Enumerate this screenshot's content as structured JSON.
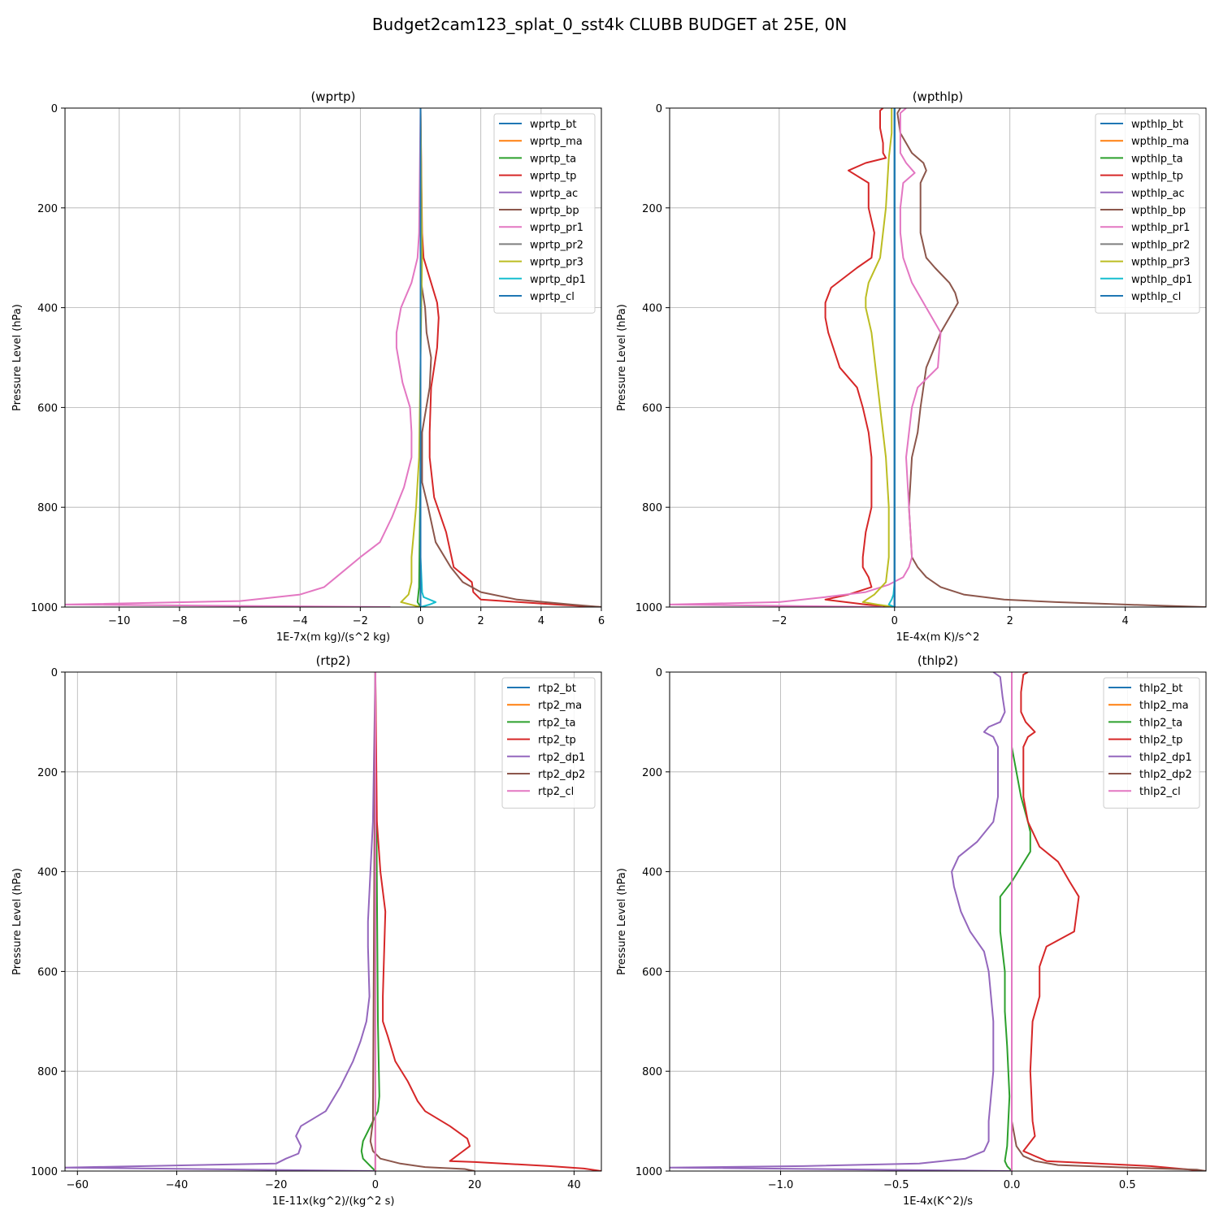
{
  "figure": {
    "title": "Budget2cam123_splat_0_sst4k CLUBB BUDGET at 25E, 0N"
  },
  "colors": [
    "#1f77b4",
    "#ff7f0e",
    "#2ca02c",
    "#d62728",
    "#9467bd",
    "#8c564b",
    "#e377c2",
    "#7f7f7f",
    "#bcbd22",
    "#17becf",
    "#1f77b4"
  ],
  "chart_data": [
    {
      "type": "line",
      "title": "(wprtp)",
      "xlabel": "1E-7x(m kg)/(s^2 kg)",
      "ylabel": "Pressure Level (hPa)",
      "xlim": [
        -11.8,
        6.0
      ],
      "ylim": [
        1000,
        0
      ],
      "y_inverted": true,
      "grid": true,
      "legend_position": "top-right",
      "xticks": [
        -10,
        -8,
        -6,
        -4,
        -2,
        0,
        2,
        4,
        6
      ],
      "xtick_labels": [
        "−10",
        "−8",
        "−6",
        "−4",
        "−2",
        "0",
        "2",
        "4",
        "6"
      ],
      "yticks": [
        0,
        200,
        400,
        600,
        800,
        1000
      ],
      "series": [
        {
          "name": "wprtp_bt",
          "p": [
            0,
            1000
          ],
          "x": [
            0,
            0
          ]
        },
        {
          "name": "wprtp_ma",
          "p": [
            0,
            1000
          ],
          "x": [
            0,
            0
          ]
        },
        {
          "name": "wprtp_ta",
          "p": [
            0,
            700,
            960,
            990,
            1000
          ],
          "x": [
            0,
            0,
            -0.05,
            -0.1,
            0
          ]
        },
        {
          "name": "wprtp_tp",
          "p": [
            0,
            250,
            300,
            350,
            390,
            420,
            480,
            560,
            650,
            700,
            780,
            850,
            920,
            950,
            970,
            985,
            995,
            1000
          ],
          "x": [
            0,
            0.05,
            0.1,
            0.35,
            0.55,
            0.6,
            0.55,
            0.35,
            0.3,
            0.3,
            0.45,
            0.85,
            1.1,
            1.7,
            1.75,
            2.0,
            4.5,
            6.0
          ]
        },
        {
          "name": "wprtp_ac",
          "p": [
            0,
            1000
          ],
          "x": [
            0,
            0
          ]
        },
        {
          "name": "wprtp_bp",
          "p": [
            0,
            350,
            400,
            450,
            500,
            560,
            650,
            750,
            800,
            870,
            920,
            950,
            970,
            985,
            995,
            1000
          ],
          "x": [
            0,
            0.02,
            0.15,
            0.2,
            0.35,
            0.3,
            0.05,
            0.05,
            0.25,
            0.5,
            1.0,
            1.4,
            2.0,
            3.2,
            5.0,
            6.0
          ]
        },
        {
          "name": "wprtp_pr1",
          "p": [
            0,
            250,
            300,
            350,
            400,
            450,
            480,
            550,
            600,
            650,
            700,
            760,
            820,
            870,
            900,
            940,
            960,
            975,
            988,
            995,
            1000
          ],
          "x": [
            0,
            -0.05,
            -0.1,
            -0.3,
            -0.65,
            -0.8,
            -0.8,
            -0.6,
            -0.35,
            -0.3,
            -0.3,
            -0.55,
            -0.95,
            -1.35,
            -2.0,
            -2.8,
            -3.2,
            -4.0,
            -6.0,
            -11.8,
            -1.0
          ]
        },
        {
          "name": "wprtp_pr2",
          "p": [
            0,
            1000
          ],
          "x": [
            0,
            0
          ]
        },
        {
          "name": "wprtp_pr3",
          "p": [
            0,
            300,
            500,
            700,
            800,
            900,
            950,
            975,
            990,
            1000
          ],
          "x": [
            0,
            0.05,
            0.0,
            -0.05,
            -0.15,
            -0.3,
            -0.3,
            -0.4,
            -0.65,
            0
          ]
        },
        {
          "name": "wprtp_dp1",
          "p": [
            0,
            900,
            970,
            980,
            990,
            995,
            1000
          ],
          "x": [
            0,
            0,
            0.05,
            0.1,
            0.5,
            0.3,
            0
          ]
        },
        {
          "name": "wprtp_cl",
          "p": [
            0,
            1000
          ],
          "x": [
            0,
            0
          ]
        }
      ]
    },
    {
      "type": "line",
      "title": "(wpthlp)",
      "xlabel": "1E-4x(m K)/s^2",
      "ylabel": "Pressure Level (hPa)",
      "xlim": [
        -3.9,
        5.4
      ],
      "ylim": [
        1000,
        0
      ],
      "y_inverted": true,
      "grid": true,
      "legend_position": "top-right",
      "xticks": [
        -2,
        0,
        2,
        4
      ],
      "xtick_labels": [
        "−2",
        "0",
        "2",
        "4"
      ],
      "yticks": [
        0,
        200,
        400,
        600,
        800,
        1000
      ],
      "series": [
        {
          "name": "wpthlp_bt",
          "p": [
            0,
            1000
          ],
          "x": [
            0,
            0
          ]
        },
        {
          "name": "wpthlp_ma",
          "p": [
            0,
            1000
          ],
          "x": [
            0,
            0
          ]
        },
        {
          "name": "wpthlp_ta",
          "p": [
            0,
            1000
          ],
          "x": [
            0,
            0
          ]
        },
        {
          "name": "wpthlp_tp",
          "p": [
            0,
            5,
            40,
            70,
            90,
            100,
            110,
            125,
            150,
            200,
            250,
            300,
            320,
            360,
            390,
            420,
            450,
            520,
            560,
            600,
            650,
            700,
            800,
            850,
            900,
            920,
            940,
            960,
            975,
            985,
            995,
            1000
          ],
          "x": [
            -0.2,
            -0.25,
            -0.25,
            -0.2,
            -0.2,
            -0.15,
            -0.5,
            -0.8,
            -0.45,
            -0.45,
            -0.35,
            -0.4,
            -0.65,
            -1.1,
            -1.2,
            -1.2,
            -1.15,
            -0.95,
            -0.65,
            -0.55,
            -0.45,
            -0.4,
            -0.4,
            -0.5,
            -0.55,
            -0.55,
            -0.45,
            -0.4,
            -0.8,
            -1.2,
            -0.5,
            0
          ]
        },
        {
          "name": "wpthlp_ac",
          "p": [
            0,
            1000
          ],
          "x": [
            0,
            0
          ]
        },
        {
          "name": "wpthlp_bp",
          "p": [
            0,
            10,
            50,
            90,
            110,
            125,
            150,
            200,
            250,
            300,
            320,
            350,
            370,
            390,
            420,
            450,
            520,
            600,
            650,
            700,
            800,
            900,
            920,
            940,
            960,
            975,
            985,
            990,
            995,
            1000
          ],
          "x": [
            0.1,
            0.05,
            0.1,
            0.3,
            0.5,
            0.55,
            0.45,
            0.45,
            0.45,
            0.55,
            0.7,
            0.95,
            1.05,
            1.1,
            0.95,
            0.8,
            0.55,
            0.45,
            0.4,
            0.3,
            0.25,
            0.3,
            0.4,
            0.55,
            0.8,
            1.2,
            1.9,
            2.8,
            4.0,
            5.4
          ]
        },
        {
          "name": "wpthlp_pr1",
          "p": [
            0,
            10,
            50,
            90,
            110,
            130,
            150,
            200,
            250,
            300,
            350,
            400,
            450,
            520,
            560,
            600,
            700,
            800,
            900,
            920,
            940,
            955,
            970,
            980,
            990,
            995,
            1000
          ],
          "x": [
            0.2,
            0.1,
            0.1,
            0.1,
            0.2,
            0.35,
            0.15,
            0.1,
            0.1,
            0.15,
            0.3,
            0.55,
            0.8,
            0.75,
            0.4,
            0.3,
            0.2,
            0.25,
            0.3,
            0.25,
            0.15,
            -0.1,
            -0.5,
            -1.2,
            -2.0,
            -3.9,
            -0.2
          ]
        },
        {
          "name": "wpthlp_pr2",
          "p": [
            0,
            1000
          ],
          "x": [
            0,
            0
          ]
        },
        {
          "name": "wpthlp_pr3",
          "p": [
            0,
            50,
            100,
            200,
            300,
            350,
            380,
            400,
            450,
            550,
            600,
            700,
            800,
            900,
            950,
            975,
            990,
            995,
            1000
          ],
          "x": [
            -0.05,
            -0.05,
            -0.1,
            -0.15,
            -0.25,
            -0.45,
            -0.5,
            -0.5,
            -0.4,
            -0.3,
            -0.25,
            -0.15,
            -0.1,
            -0.1,
            -0.15,
            -0.35,
            -0.55,
            -0.3,
            0
          ]
        },
        {
          "name": "wpthlp_dp1",
          "p": [
            0,
            900,
            950,
            975,
            985,
            995,
            1000
          ],
          "x": [
            0,
            0,
            0,
            -0.02,
            -0.05,
            -0.1,
            0
          ]
        },
        {
          "name": "wpthlp_cl",
          "p": [
            0,
            1000
          ],
          "x": [
            0,
            0
          ]
        }
      ]
    },
    {
      "type": "line",
      "title": "(rtp2)",
      "xlabel": "1E-11x(kg^2)/(kg^2 s)",
      "ylabel": "Pressure Level (hPa)",
      "xlim": [
        -62.5,
        45.5
      ],
      "ylim": [
        1000,
        0
      ],
      "y_inverted": true,
      "grid": true,
      "legend_position": "top-right",
      "xticks": [
        -60,
        -40,
        -20,
        0,
        20,
        40
      ],
      "xtick_labels": [
        "−60",
        "−40",
        "−20",
        "0",
        "20",
        "40"
      ],
      "yticks": [
        0,
        200,
        400,
        600,
        800,
        1000
      ],
      "series": [
        {
          "name": "rtp2_bt",
          "p": [
            0,
            1000
          ],
          "x": [
            0,
            0
          ]
        },
        {
          "name": "rtp2_ma",
          "p": [
            0,
            1000
          ],
          "x": [
            0,
            0
          ]
        },
        {
          "name": "rtp2_ta",
          "p": [
            0,
            700,
            850,
            880,
            900,
            920,
            940,
            960,
            975,
            990,
            1000
          ],
          "x": [
            0,
            0.5,
            0.8,
            0.5,
            -0.5,
            -1.5,
            -2.5,
            -2.8,
            -2.5,
            -1.0,
            0
          ]
        },
        {
          "name": "rtp2_tp",
          "p": [
            0,
            300,
            400,
            480,
            550,
            650,
            700,
            730,
            780,
            820,
            860,
            880,
            910,
            935,
            950,
            965,
            980,
            982,
            990,
            995,
            1000
          ],
          "x": [
            0,
            0.3,
            1.0,
            2.0,
            1.8,
            1.5,
            1.5,
            2.5,
            4.0,
            6.5,
            8.5,
            10.0,
            15.0,
            18.5,
            19.0,
            17.0,
            15.0,
            20.0,
            35.0,
            42.0,
            45.5
          ]
        },
        {
          "name": "rtp2_dp1",
          "p": [
            0,
            300,
            400,
            500,
            550,
            650,
            700,
            740,
            780,
            830,
            880,
            910,
            930,
            950,
            965,
            975,
            985,
            993,
            1000
          ],
          "x": [
            0,
            -0.5,
            -1.0,
            -1.5,
            -1.5,
            -1.2,
            -1.8,
            -3.0,
            -4.5,
            -7.0,
            -10.0,
            -15.0,
            -16.0,
            -15.0,
            -15.5,
            -18.0,
            -20.0,
            -62.5,
            0
          ]
        },
        {
          "name": "rtp2_dp2",
          "p": [
            0,
            900,
            940,
            960,
            975,
            985,
            992,
            996,
            1000
          ],
          "x": [
            0,
            -0.5,
            -1.0,
            -0.5,
            1.0,
            5.0,
            10.0,
            18.0,
            20.0
          ]
        },
        {
          "name": "rtp2_cl",
          "p": [
            0,
            1000
          ],
          "x": [
            0,
            0
          ]
        }
      ]
    },
    {
      "type": "line",
      "title": "(thlp2)",
      "xlabel": "1E-4x(K^2)/s",
      "ylabel": "Pressure Level (hPa)",
      "xlim": [
        -1.48,
        0.84
      ],
      "ylim": [
        1000,
        0
      ],
      "y_inverted": true,
      "grid": true,
      "legend_position": "top-right",
      "xticks": [
        -1.0,
        -0.5,
        0.0,
        0.5
      ],
      "xtick_labels": [
        "−1.0",
        "−0.5",
        "0.0",
        "0.5"
      ],
      "yticks": [
        0,
        200,
        400,
        600,
        800,
        1000
      ],
      "series": [
        {
          "name": "thlp2_bt",
          "p": [
            0,
            1000
          ],
          "x": [
            0,
            0
          ]
        },
        {
          "name": "thlp2_ma",
          "p": [
            0,
            1000
          ],
          "x": [
            0,
            0
          ]
        },
        {
          "name": "thlp2_ta",
          "p": [
            0,
            150,
            200,
            250,
            300,
            320,
            360,
            390,
            420,
            450,
            520,
            600,
            650,
            680,
            750,
            850,
            950,
            980,
            990,
            1000
          ],
          "x": [
            0,
            0.0,
            0.02,
            0.04,
            0.07,
            0.08,
            0.08,
            0.04,
            0.0,
            -0.05,
            -0.05,
            -0.03,
            -0.03,
            -0.03,
            -0.02,
            -0.01,
            -0.02,
            -0.03,
            -0.02,
            0
          ]
        },
        {
          "name": "thlp2_tp",
          "p": [
            0,
            5,
            40,
            80,
            100,
            120,
            130,
            150,
            200,
            250,
            300,
            350,
            380,
            420,
            450,
            520,
            550,
            590,
            650,
            700,
            800,
            900,
            930,
            960,
            980,
            990,
            1000
          ],
          "x": [
            0.07,
            0.05,
            0.04,
            0.04,
            0.06,
            0.1,
            0.07,
            0.05,
            0.05,
            0.05,
            0.07,
            0.12,
            0.2,
            0.25,
            0.29,
            0.27,
            0.15,
            0.12,
            0.12,
            0.09,
            0.08,
            0.09,
            0.1,
            0.05,
            0.15,
            0.6,
            0.84
          ]
        },
        {
          "name": "thlp2_dp1",
          "p": [
            0,
            10,
            50,
            80,
            100,
            110,
            120,
            130,
            150,
            200,
            250,
            300,
            340,
            370,
            400,
            430,
            480,
            520,
            560,
            600,
            700,
            800,
            900,
            940,
            960,
            975,
            985,
            990,
            993,
            1000
          ],
          "x": [
            -0.08,
            -0.05,
            -0.04,
            -0.03,
            -0.05,
            -0.1,
            -0.12,
            -0.08,
            -0.06,
            -0.06,
            -0.06,
            -0.08,
            -0.15,
            -0.23,
            -0.26,
            -0.25,
            -0.22,
            -0.18,
            -0.12,
            -0.1,
            -0.08,
            -0.08,
            -0.1,
            -0.1,
            -0.12,
            -0.2,
            -0.4,
            -0.9,
            -1.48,
            0
          ]
        },
        {
          "name": "thlp2_dp2",
          "p": [
            0,
            900,
            950,
            970,
            980,
            988,
            993,
            997,
            1000
          ],
          "x": [
            0,
            0.0,
            0.02,
            0.05,
            0.1,
            0.2,
            0.5,
            0.8,
            0.84
          ]
        },
        {
          "name": "thlp2_cl",
          "p": [
            0,
            1000
          ],
          "x": [
            0,
            0
          ]
        }
      ]
    }
  ]
}
